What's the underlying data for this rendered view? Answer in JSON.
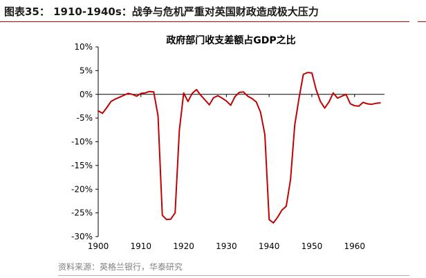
{
  "figure_title": "图表35：  1910-1940s：战争与危机严重对英国财政造成极大压力",
  "source_text": "资料来源：英格兰银行，华泰研究",
  "chart_data": {
    "type": "line",
    "title": "政府部门收支差额占GDP之比",
    "xlabel": "",
    "ylabel": "",
    "xlim": [
      1900,
      1967
    ],
    "ylim": [
      -30,
      10
    ],
    "x_ticks": [
      1900,
      1910,
      1920,
      1930,
      1940,
      1950,
      1960
    ],
    "y_ticks": [
      10,
      5,
      0,
      -5,
      -10,
      -15,
      -20,
      -25,
      -30
    ],
    "y_tick_labels": [
      "10%",
      "5%",
      "0%",
      "-5%",
      "-10%",
      "-15%",
      "-20%",
      "-25%",
      "-30%"
    ],
    "series": [
      {
        "color": "#c00000",
        "x": [
          1900,
          1901,
          1902,
          1903,
          1904,
          1905,
          1906,
          1907,
          1908,
          1909,
          1910,
          1911,
          1912,
          1913,
          1914,
          1915,
          1916,
          1917,
          1918,
          1919,
          1920,
          1921,
          1922,
          1923,
          1924,
          1925,
          1926,
          1927,
          1928,
          1929,
          1930,
          1931,
          1932,
          1933,
          1934,
          1935,
          1936,
          1937,
          1938,
          1939,
          1940,
          1941,
          1942,
          1943,
          1944,
          1945,
          1946,
          1947,
          1948,
          1949,
          1950,
          1951,
          1952,
          1953,
          1954,
          1955,
          1956,
          1957,
          1958,
          1959,
          1960,
          1961,
          1962,
          1963,
          1964,
          1965,
          1966
        ],
        "values": [
          -3.5,
          -4.0,
          -2.8,
          -1.5,
          -1.0,
          -0.6,
          -0.2,
          0.2,
          0.0,
          -0.4,
          0.2,
          0.3,
          0.6,
          0.5,
          -4.5,
          -25.5,
          -26.4,
          -26.3,
          -25.0,
          -7.5,
          0.3,
          -1.5,
          0.2,
          1.0,
          -0.2,
          -1.2,
          -2.2,
          -0.7,
          -0.3,
          -0.8,
          -1.4,
          -2.3,
          -0.5,
          0.4,
          0.5,
          -0.4,
          -0.9,
          -1.6,
          -3.8,
          -8.5,
          -26.4,
          -27.1,
          -25.9,
          -24.4,
          -23.6,
          -18.0,
          -6.5,
          -0.8,
          4.2,
          4.6,
          4.5,
          1.0,
          -1.5,
          -2.9,
          -1.6,
          0.3,
          -0.8,
          -0.4,
          0.0,
          -2.0,
          -2.4,
          -2.5,
          -1.7,
          -2.0,
          -2.1,
          -1.9,
          -1.8
        ]
      }
    ],
    "grid": false,
    "legend": "none"
  }
}
